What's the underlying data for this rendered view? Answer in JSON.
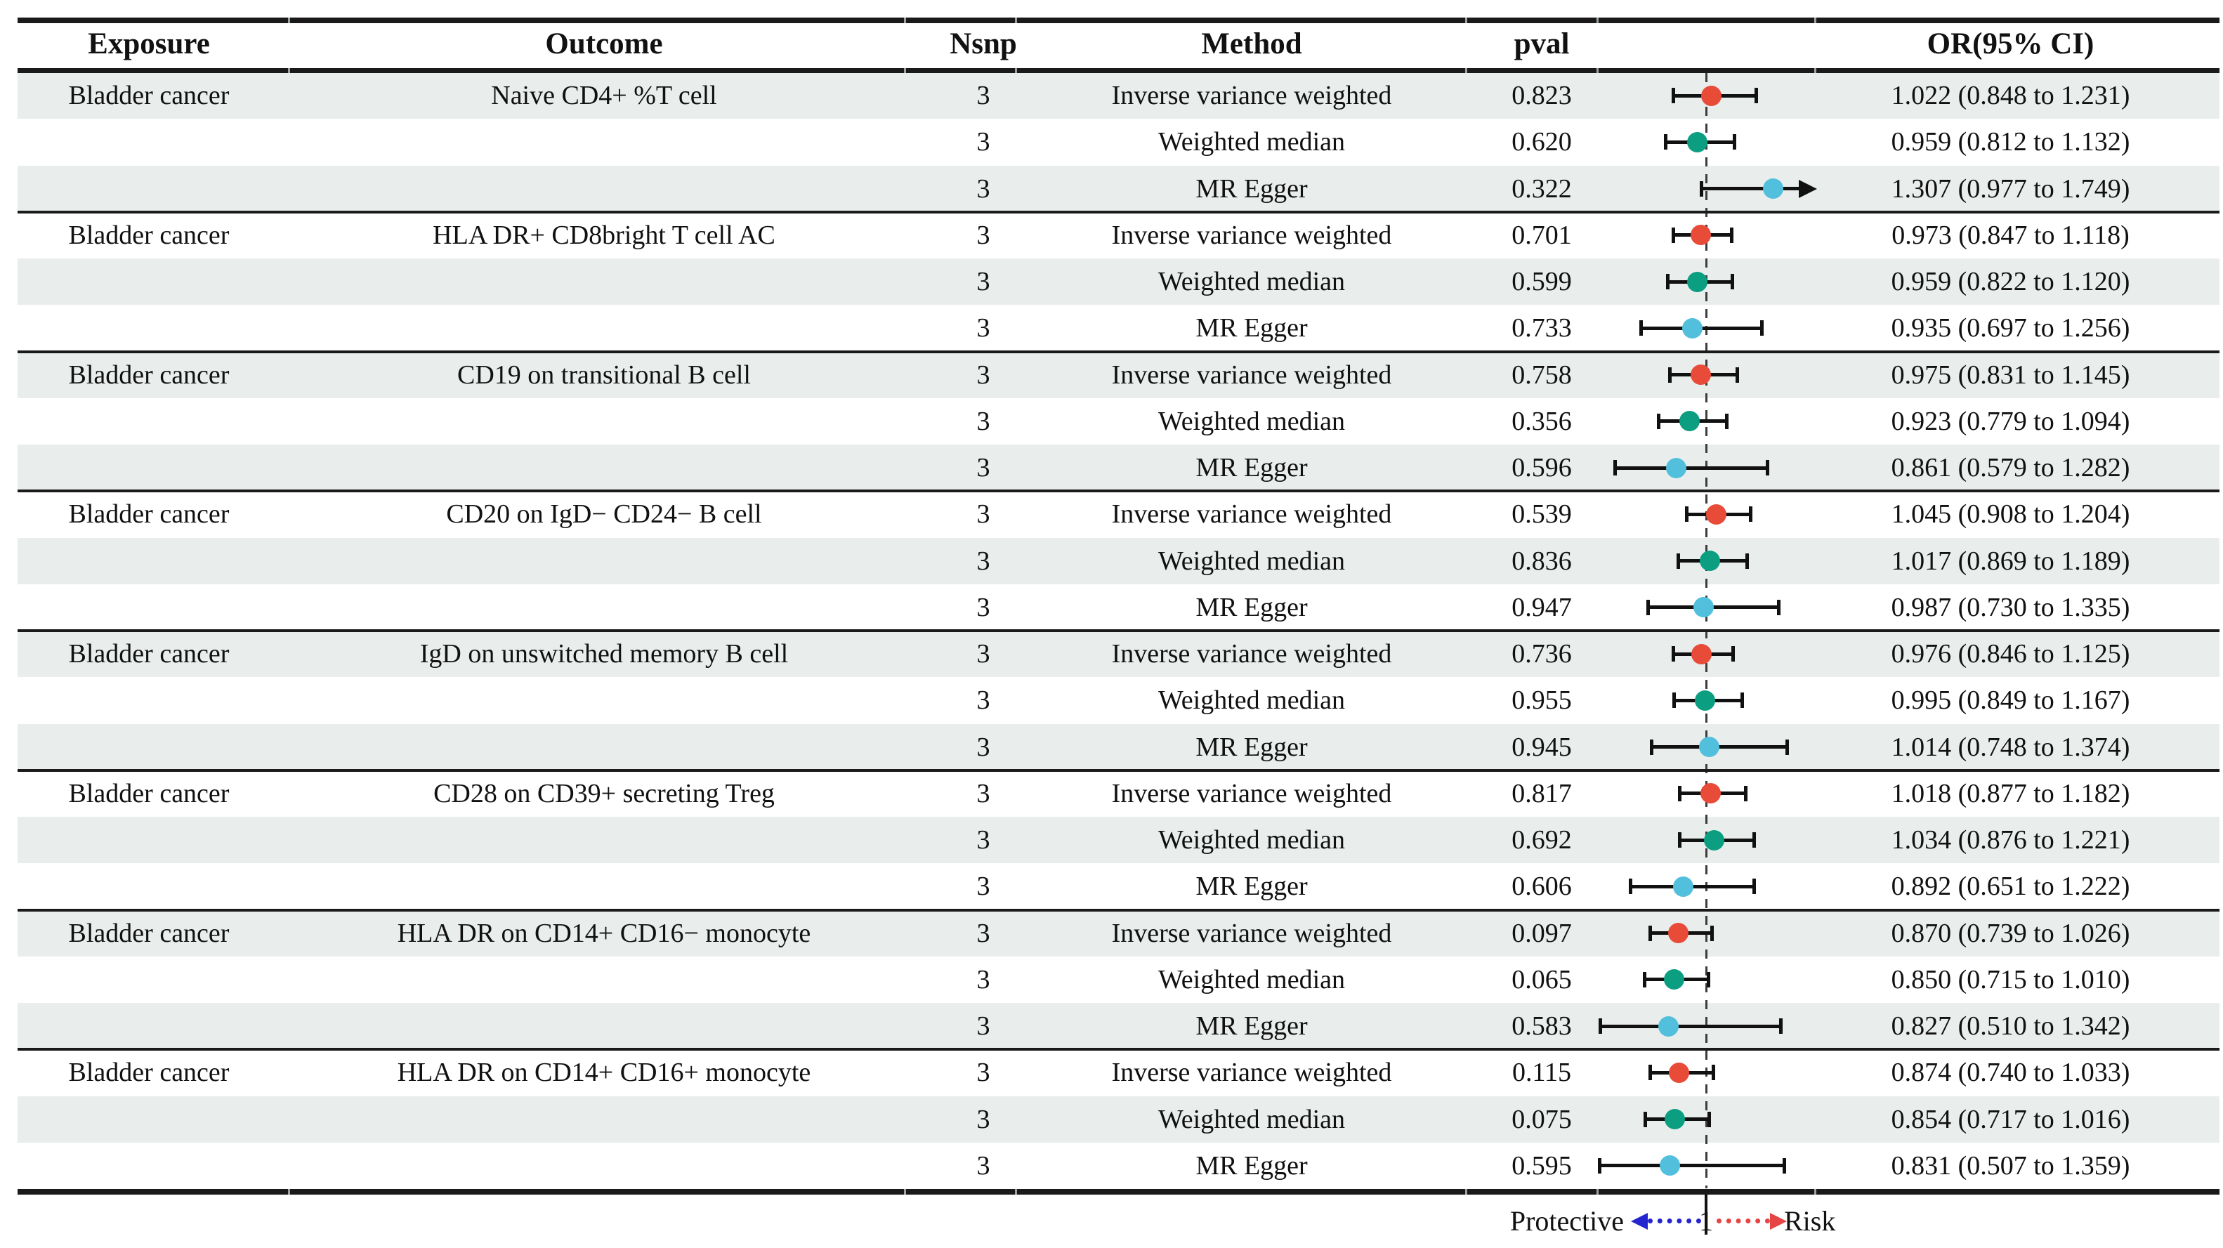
{
  "colors": {
    "ivw_marker": "#e84b38",
    "weighted_median_marker": "#0c9e81",
    "mr_egger_marker": "#52c0dc",
    "row_stripe": "#e9eeec",
    "rule": "#1a1a1a",
    "protective_arrow": "#2525cf",
    "risk_arrow": "#e54545"
  },
  "legend": {
    "protective_label": "Protective",
    "axis_value": "1",
    "risk_label": "Risk"
  },
  "chart_data": {
    "type": "forest",
    "title": "",
    "columns": [
      "Exposure",
      "Outcome",
      "Nsnp",
      "Method",
      "pval",
      "OR(95% CI)"
    ],
    "x_axis": {
      "scale": "linear",
      "null_line": 1,
      "visible_min": 0.49,
      "visible_max": 1.5,
      "overflow_marker": "arrow",
      "left_direction_label": "Protective",
      "right_direction_label": "Risk"
    },
    "method_colors": {
      "Inverse variance weighted": "#e84b38",
      "Weighted median": "#0c9e81",
      "MR Egger": "#52c0dc"
    },
    "rows": [
      {
        "exposure": "Bladder cancer",
        "outcome": "Naive CD4+  %T cell",
        "nsnp": "3",
        "method": "Inverse variance weighted",
        "pval": "0.823",
        "or": 1.022,
        "lo": 0.848,
        "hi": 1.231,
        "or_ci": "1.022 (0.848 to 1.231)"
      },
      {
        "exposure": "",
        "outcome": "",
        "nsnp": "3",
        "method": "Weighted median",
        "pval": "0.620",
        "or": 0.959,
        "lo": 0.812,
        "hi": 1.132,
        "or_ci": "0.959 (0.812 to 1.132)"
      },
      {
        "exposure": "",
        "outcome": "",
        "nsnp": "3",
        "method": "MR Egger",
        "pval": "0.322",
        "or": 1.307,
        "lo": 0.977,
        "hi": 1.749,
        "or_ci": "1.307 (0.977 to 1.749)"
      },
      {
        "exposure": "Bladder cancer",
        "outcome": "HLA DR+ CD8bright T cell AC",
        "nsnp": "3",
        "method": "Inverse variance weighted",
        "pval": "0.701",
        "or": 0.973,
        "lo": 0.847,
        "hi": 1.118,
        "or_ci": "0.973 (0.847 to 1.118)"
      },
      {
        "exposure": "",
        "outcome": "",
        "nsnp": "3",
        "method": "Weighted median",
        "pval": "0.599",
        "or": 0.959,
        "lo": 0.822,
        "hi": 1.12,
        "or_ci": "0.959 (0.822 to 1.120)"
      },
      {
        "exposure": "",
        "outcome": "",
        "nsnp": "3",
        "method": "MR Egger",
        "pval": "0.733",
        "or": 0.935,
        "lo": 0.697,
        "hi": 1.256,
        "or_ci": "0.935 (0.697 to 1.256)"
      },
      {
        "exposure": "Bladder cancer",
        "outcome": "CD19 on transitional B cell",
        "nsnp": "3",
        "method": "Inverse variance weighted",
        "pval": "0.758",
        "or": 0.975,
        "lo": 0.831,
        "hi": 1.145,
        "or_ci": "0.975 (0.831 to 1.145)"
      },
      {
        "exposure": "",
        "outcome": "",
        "nsnp": "3",
        "method": "Weighted median",
        "pval": "0.356",
        "or": 0.923,
        "lo": 0.779,
        "hi": 1.094,
        "or_ci": "0.923 (0.779 to 1.094)"
      },
      {
        "exposure": "",
        "outcome": "",
        "nsnp": "3",
        "method": "MR Egger",
        "pval": "0.596",
        "or": 0.861,
        "lo": 0.579,
        "hi": 1.282,
        "or_ci": "0.861 (0.579 to 1.282)"
      },
      {
        "exposure": "Bladder cancer",
        "outcome": "CD20 on IgD− CD24− B cell",
        "nsnp": "3",
        "method": "Inverse variance weighted",
        "pval": "0.539",
        "or": 1.045,
        "lo": 0.908,
        "hi": 1.204,
        "or_ci": "1.045 (0.908 to 1.204)"
      },
      {
        "exposure": "",
        "outcome": "",
        "nsnp": "3",
        "method": "Weighted median",
        "pval": "0.836",
        "or": 1.017,
        "lo": 0.869,
        "hi": 1.189,
        "or_ci": "1.017 (0.869 to 1.189)"
      },
      {
        "exposure": "",
        "outcome": "",
        "nsnp": "3",
        "method": "MR Egger",
        "pval": "0.947",
        "or": 0.987,
        "lo": 0.73,
        "hi": 1.335,
        "or_ci": "0.987 (0.730 to 1.335)"
      },
      {
        "exposure": "Bladder cancer",
        "outcome": "IgD on unswitched  memory B cell",
        "nsnp": "3",
        "method": "Inverse variance weighted",
        "pval": "0.736",
        "or": 0.976,
        "lo": 0.846,
        "hi": 1.125,
        "or_ci": "0.976 (0.846 to 1.125)"
      },
      {
        "exposure": "",
        "outcome": "",
        "nsnp": "3",
        "method": "Weighted median",
        "pval": "0.955",
        "or": 0.995,
        "lo": 0.849,
        "hi": 1.167,
        "or_ci": "0.995 (0.849 to 1.167)"
      },
      {
        "exposure": "",
        "outcome": "",
        "nsnp": "3",
        "method": "MR Egger",
        "pval": "0.945",
        "or": 1.014,
        "lo": 0.748,
        "hi": 1.374,
        "or_ci": "1.014 (0.748 to 1.374)"
      },
      {
        "exposure": "Bladder cancer",
        "outcome": "CD28 on CD39+ secreting Treg",
        "nsnp": "3",
        "method": "Inverse variance weighted",
        "pval": "0.817",
        "or": 1.018,
        "lo": 0.877,
        "hi": 1.182,
        "or_ci": "1.018 (0.877 to 1.182)"
      },
      {
        "exposure": "",
        "outcome": "",
        "nsnp": "3",
        "method": "Weighted median",
        "pval": "0.692",
        "or": 1.034,
        "lo": 0.876,
        "hi": 1.221,
        "or_ci": "1.034 (0.876 to 1.221)"
      },
      {
        "exposure": "",
        "outcome": "",
        "nsnp": "3",
        "method": "MR Egger",
        "pval": "0.606",
        "or": 0.892,
        "lo": 0.651,
        "hi": 1.222,
        "or_ci": "0.892 (0.651 to 1.222)"
      },
      {
        "exposure": "Bladder cancer",
        "outcome": "HLA DR on CD14+ CD16− monocyte",
        "nsnp": "3",
        "method": "Inverse variance weighted",
        "pval": "0.097",
        "or": 0.87,
        "lo": 0.739,
        "hi": 1.026,
        "or_ci": "0.870 (0.739 to 1.026)"
      },
      {
        "exposure": "",
        "outcome": "",
        "nsnp": "3",
        "method": "Weighted median",
        "pval": "0.065",
        "or": 0.85,
        "lo": 0.715,
        "hi": 1.01,
        "or_ci": "0.850 (0.715 to 1.010)"
      },
      {
        "exposure": "",
        "outcome": "",
        "nsnp": "3",
        "method": "MR Egger",
        "pval": "0.583",
        "or": 0.827,
        "lo": 0.51,
        "hi": 1.342,
        "or_ci": "0.827 (0.510 to 1.342)"
      },
      {
        "exposure": "Bladder cancer",
        "outcome": "HLA DR on CD14+ CD16+ monocyte",
        "nsnp": "3",
        "method": "Inverse variance weighted",
        "pval": "0.115",
        "or": 0.874,
        "lo": 0.74,
        "hi": 1.033,
        "or_ci": "0.874 (0.740 to 1.033)"
      },
      {
        "exposure": "",
        "outcome": "",
        "nsnp": "3",
        "method": "Weighted median",
        "pval": "0.075",
        "or": 0.854,
        "lo": 0.717,
        "hi": 1.016,
        "or_ci": "0.854 (0.717 to 1.016)"
      },
      {
        "exposure": "",
        "outcome": "",
        "nsnp": "3",
        "method": "MR Egger",
        "pval": "0.595",
        "or": 0.831,
        "lo": 0.507,
        "hi": 1.359,
        "or_ci": "0.831 (0.507 to 1.359)"
      }
    ]
  }
}
